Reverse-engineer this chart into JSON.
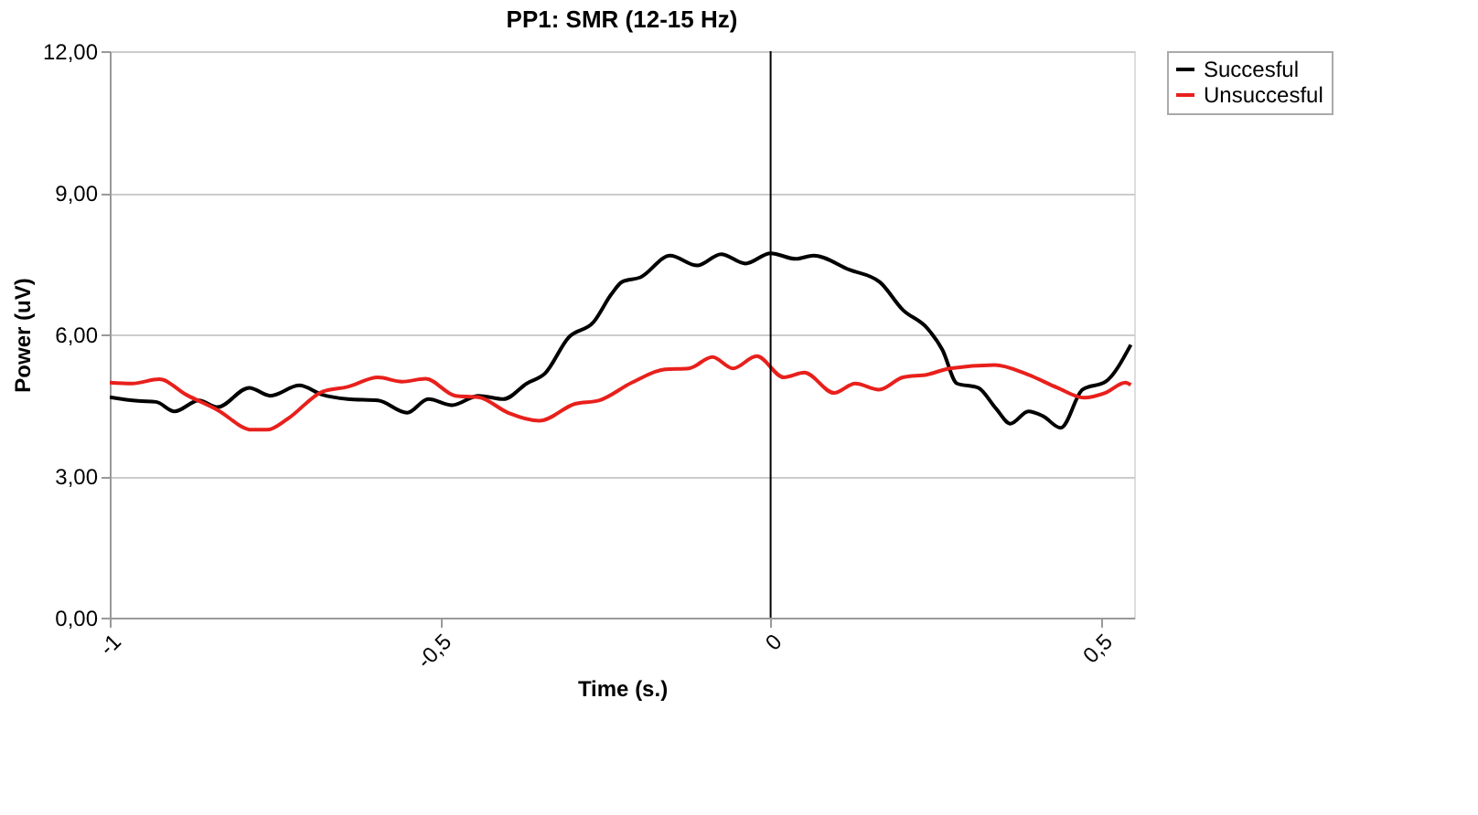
{
  "chart_data": {
    "type": "line",
    "title": "PP1: SMR (12-15 Hz)",
    "xlabel": "Time (s.)",
    "ylabel": "Power (uV)",
    "xlim": [
      -1,
      0.55
    ],
    "xticks": [
      {
        "value": -1,
        "label": "-1"
      },
      {
        "value": -0.5,
        "label": "-0,5"
      },
      {
        "value": 0,
        "label": "0"
      },
      {
        "value": 0.5,
        "label": "0,5"
      }
    ],
    "ylim": [
      0,
      12
    ],
    "yticks": [
      {
        "value": 0,
        "label": "0,00"
      },
      {
        "value": 3,
        "label": "3,00"
      },
      {
        "value": 6,
        "label": "6,00"
      },
      {
        "value": 9,
        "label": "9,00"
      },
      {
        "value": 12,
        "label": "12,00"
      }
    ],
    "grid": "y",
    "legend": "right",
    "marker": "none",
    "line_style": "solid",
    "ref_lines": [
      {
        "axis": "x",
        "value": 0,
        "color": "#000000"
      }
    ],
    "series": [
      {
        "name": "Succesful",
        "color": "#000000",
        "x": [
          -1.0,
          -0.957,
          -0.93,
          -0.902,
          -0.865,
          -0.837,
          -0.789,
          -0.757,
          -0.713,
          -0.68,
          -0.64,
          -0.594,
          -0.55,
          -0.518,
          -0.482,
          -0.442,
          -0.404,
          -0.369,
          -0.341,
          -0.306,
          -0.268,
          -0.241,
          -0.225,
          -0.197,
          -0.152,
          -0.111,
          -0.075,
          -0.038,
          0,
          0.038,
          0.065,
          0.119,
          0.165,
          0.2,
          0.237,
          0.26,
          0.282,
          0.314,
          0.341,
          0.363,
          0.39,
          0.412,
          0.439,
          0.472,
          0.507,
          0.545
        ],
        "values": [
          4.67,
          4.59,
          4.57,
          4.37,
          4.6,
          4.46,
          4.87,
          4.7,
          4.92,
          4.73,
          4.63,
          4.6,
          4.34,
          4.63,
          4.5,
          4.7,
          4.63,
          4.96,
          5.18,
          5.93,
          6.26,
          6.85,
          7.11,
          7.21,
          7.67,
          7.46,
          7.7,
          7.5,
          7.72,
          7.6,
          7.67,
          7.37,
          7.11,
          6.52,
          6.13,
          5.67,
          4.96,
          4.87,
          4.43,
          4.11,
          4.37,
          4.27,
          4.02,
          4.83,
          5.0,
          5.78
        ]
      },
      {
        "name": "Unsuccesful",
        "color": "#e8201c",
        "x": [
          -1.0,
          -0.966,
          -0.925,
          -0.884,
          -0.837,
          -0.785,
          -0.762,
          -0.731,
          -0.678,
          -0.64,
          -0.594,
          -0.558,
          -0.522,
          -0.477,
          -0.442,
          -0.397,
          -0.35,
          -0.296,
          -0.26,
          -0.21,
          -0.16,
          -0.124,
          -0.088,
          -0.057,
          -0.021,
          0.02,
          0.051,
          0.096,
          0.128,
          0.164,
          0.2,
          0.237,
          0.271,
          0.339,
          0.389,
          0.434,
          0.474,
          0.506,
          0.537,
          0.545
        ],
        "values": [
          4.98,
          4.96,
          5.05,
          4.72,
          4.4,
          3.98,
          3.98,
          4.21,
          4.79,
          4.89,
          5.09,
          5.0,
          5.06,
          4.7,
          4.67,
          4.34,
          4.17,
          4.53,
          4.6,
          4.98,
          5.26,
          5.28,
          5.52,
          5.28,
          5.54,
          5.09,
          5.19,
          4.76,
          4.96,
          4.83,
          5.09,
          5.15,
          5.28,
          5.35,
          5.15,
          4.87,
          4.66,
          4.76,
          4.98,
          4.93
        ]
      }
    ]
  }
}
